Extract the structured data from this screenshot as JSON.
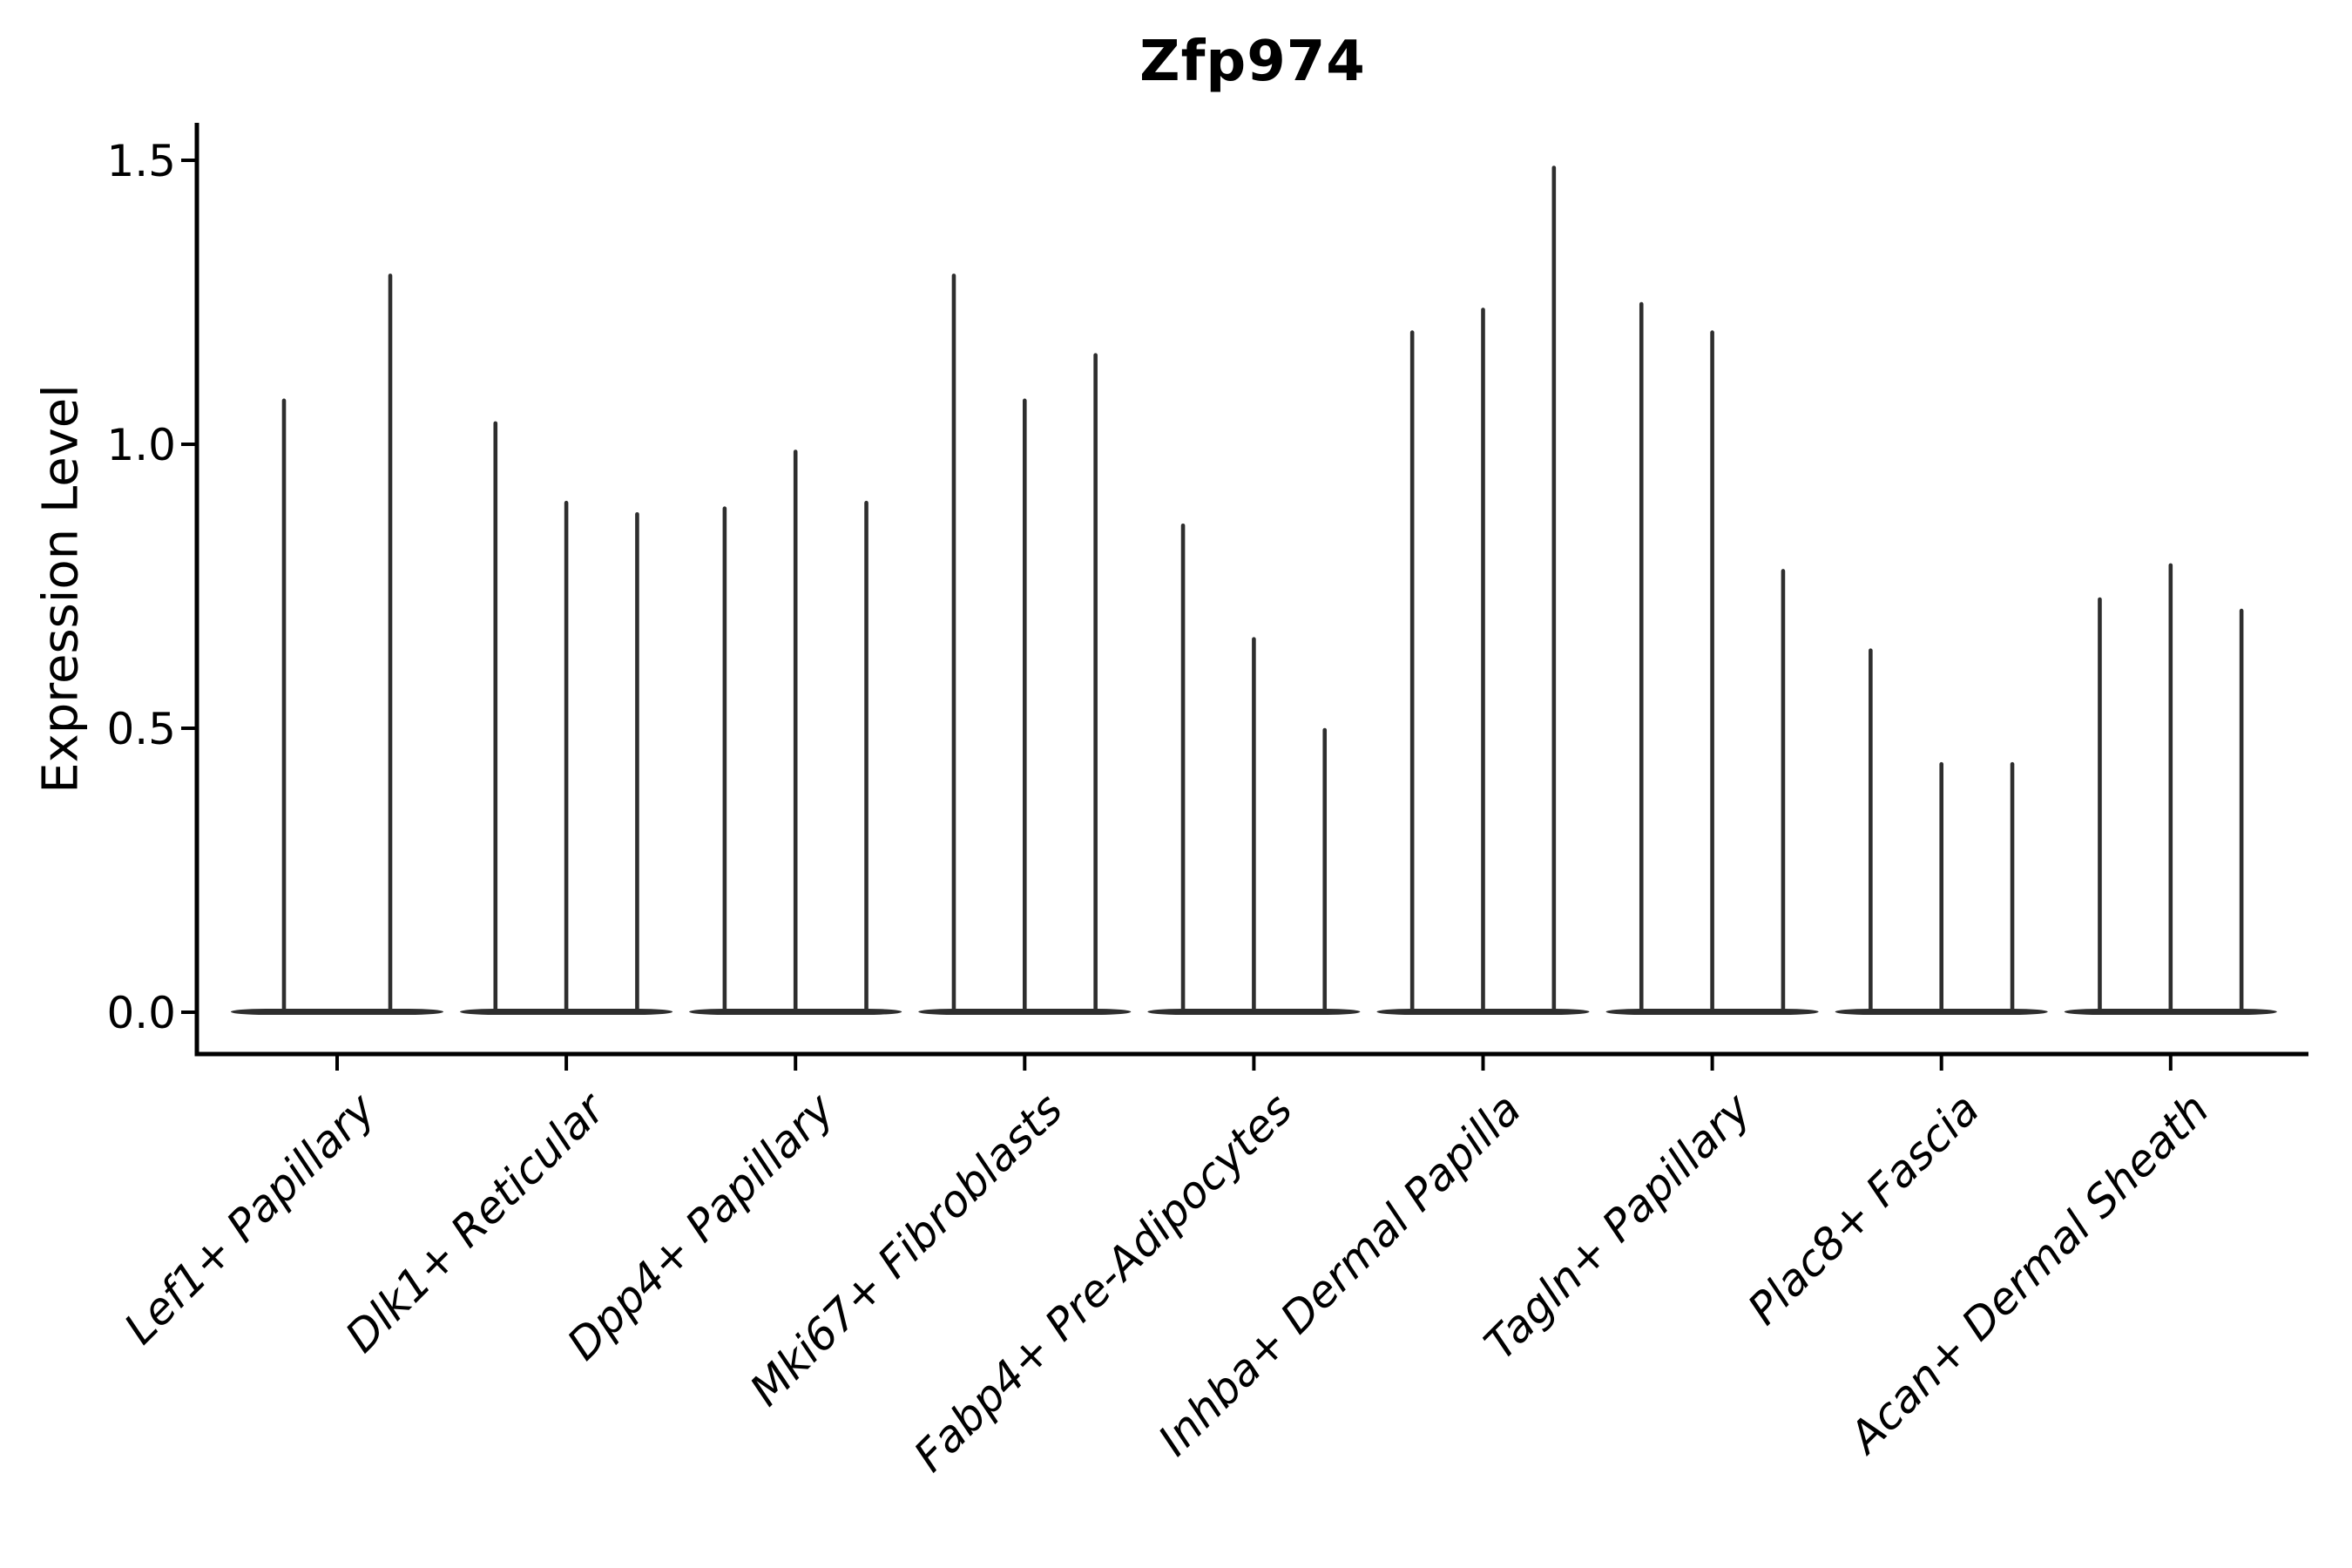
{
  "title": "Zfp974",
  "ylabel": "Expression Level",
  "colors": {
    "background": "#ffffff",
    "violin_line": "#2e2e2e",
    "axis": "#000000",
    "text": "#000000"
  },
  "chart_data": {
    "type": "violin",
    "title": "Zfp974",
    "xlabel": "",
    "ylabel": "Expression Level",
    "ylim": [
      0,
      1.57
    ],
    "yticks": [
      0.0,
      0.5,
      1.0,
      1.5
    ],
    "ytick_labels": [
      "0.0",
      "0.5",
      "1.0",
      "1.5"
    ],
    "grid": false,
    "legend": "none",
    "x_tick_label_style": "italic, rotated 45deg",
    "violin_style": "thin spikes from flat tapered base at y=0",
    "categories": [
      "Lef1+ Papillary",
      "Dlk1+ Reticular",
      "Dpp4+ Papillary",
      "Mki67+ Fibroblasts",
      "Fabp4+ Pre-Adipocytes",
      "Inhba+ Dermal Papilla",
      "Tagln+ Papillary",
      "Plac8+ Fascia",
      "Acan+ Dermal Sheath"
    ],
    "series": [
      {
        "category": "Lef1+ Papillary",
        "violin_peak_values": [
          1.08,
          1.3
        ],
        "baseline_value": 0.0
      },
      {
        "category": "Dlk1+ Reticular",
        "violin_peak_values": [
          1.04,
          0.9,
          0.88
        ],
        "baseline_value": 0.0
      },
      {
        "category": "Dpp4+ Papillary",
        "violin_peak_values": [
          0.89,
          0.99,
          0.9
        ],
        "baseline_value": 0.0
      },
      {
        "category": "Mki67+ Fibroblasts",
        "violin_peak_values": [
          1.3,
          1.08,
          1.16
        ],
        "baseline_value": 0.0
      },
      {
        "category": "Fabp4+ Pre-Adipocytes",
        "violin_peak_values": [
          0.86,
          0.66,
          0.5
        ],
        "baseline_value": 0.0
      },
      {
        "category": "Inhba+ Dermal Papilla",
        "violin_peak_values": [
          1.2,
          1.24,
          1.49
        ],
        "baseline_value": 0.0
      },
      {
        "category": "Tagln+ Papillary",
        "violin_peak_values": [
          1.25,
          1.2,
          0.78
        ],
        "baseline_value": 0.0
      },
      {
        "category": "Plac8+ Fascia",
        "violin_peak_values": [
          0.64,
          0.44,
          0.44
        ],
        "baseline_value": 0.0
      },
      {
        "category": "Acan+ Dermal Sheath",
        "violin_peak_values": [
          0.73,
          0.79,
          0.71
        ],
        "baseline_value": 0.0
      }
    ]
  }
}
